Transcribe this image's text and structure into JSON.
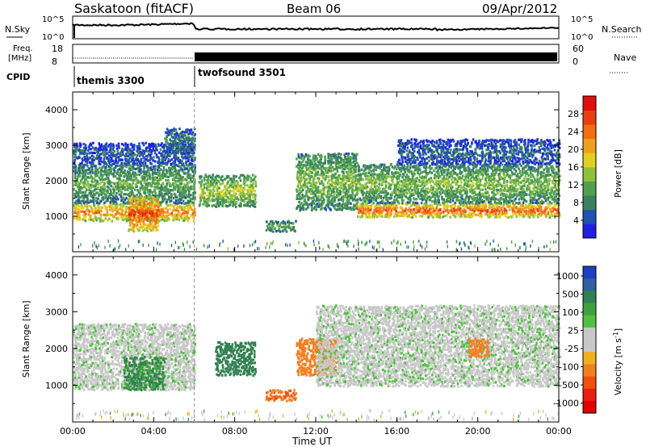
{
  "header": {
    "station": "Saskatoon (fitACF)",
    "beam": "Beam 06",
    "date": "09/Apr/2012"
  },
  "top_panels": {
    "nsky_label": "N.Sky",
    "nsearch_label": "N.Search",
    "noise_ticks": [
      "10^5",
      "10^0"
    ],
    "freq_label_1": "Freq.",
    "freq_label_2": "[MHz]",
    "freq_ticks": [
      "18",
      "8"
    ],
    "nave_label": "Nave",
    "nave_ticks": [
      "60",
      "0"
    ],
    "cpid_label": "CPID",
    "cpid_segments": [
      {
        "name": "themis 3300",
        "start": "00:00",
        "end": "06:00"
      },
      {
        "name": "twofsound 3501",
        "start": "06:00",
        "end": "24:00"
      }
    ]
  },
  "x_axis": {
    "label": "Time UT",
    "ticks": [
      "00:00",
      "04:00",
      "08:00",
      "12:00",
      "16:00",
      "20:00",
      "00:00"
    ]
  },
  "colorbars": {
    "power": {
      "label": "Power [dB]",
      "ticks": [
        "28",
        "24",
        "20",
        "16",
        "12",
        "8",
        "4"
      ],
      "colors": [
        "#2020e0",
        "#2050b0",
        "#3a8060",
        "#50a050",
        "#90c040",
        "#e0d020",
        "#f0a020",
        "#f07010",
        "#e84010",
        "#e01010"
      ]
    },
    "velocity": {
      "label": "Velocity [m s",
      "label_sup": "-1",
      "label_end": "]",
      "ticks": [
        "1000",
        "500",
        "100",
        "25",
        "-25",
        "-100",
        "-500",
        "-1000"
      ],
      "colors": [
        "#2040c0",
        "#3060a0",
        "#308050",
        "#40a040",
        "#50c040",
        "#c8c8c8",
        "#c8c8c8",
        "#f0b020",
        "#f08020",
        "#f05010",
        "#e82010",
        "#e00000"
      ]
    }
  },
  "chart_data": [
    {
      "type": "heatmap",
      "name": "power",
      "ylabel": "Slant Range [km]",
      "yticks": [
        "1000",
        "2000",
        "3000",
        "4000"
      ],
      "ylim": [
        0,
        4500
      ],
      "xlim": [
        0,
        24
      ],
      "colorbar": "Power [dB]",
      "bands": [
        {
          "t0": 0.0,
          "t1": 6.0,
          "r0": 900,
          "r1": 1400,
          "power": 24
        },
        {
          "t0": 0.0,
          "t1": 6.0,
          "r0": 1400,
          "r1": 2500,
          "power": 12
        },
        {
          "t0": 0.0,
          "t1": 6.0,
          "r0": 2500,
          "r1": 3100,
          "power": 6
        },
        {
          "t0": 2.7,
          "t1": 4.2,
          "r0": 600,
          "r1": 1600,
          "power": 28
        },
        {
          "t0": 4.5,
          "t1": 6.0,
          "r0": 2800,
          "r1": 3500,
          "power": 8
        },
        {
          "t0": 6.2,
          "t1": 9.0,
          "r0": 1300,
          "r1": 2200,
          "power": 16
        },
        {
          "t0": 9.5,
          "t1": 11.0,
          "r0": 600,
          "r1": 900,
          "power": 12
        },
        {
          "t0": 11.0,
          "t1": 14.0,
          "r0": 1200,
          "r1": 2800,
          "power": 14
        },
        {
          "t0": 14.0,
          "t1": 24.0,
          "r0": 1000,
          "r1": 1400,
          "power": 26
        },
        {
          "t0": 14.0,
          "t1": 24.0,
          "r0": 1400,
          "r1": 2500,
          "power": 14
        },
        {
          "t0": 16.0,
          "t1": 24.0,
          "r0": 2500,
          "r1": 3200,
          "power": 6
        }
      ]
    },
    {
      "type": "heatmap",
      "name": "velocity",
      "ylabel": "Slant Range [km]",
      "yticks": [
        "1000",
        "2000",
        "3000",
        "4000"
      ],
      "ylim": [
        0,
        4500
      ],
      "xlim": [
        0,
        24
      ],
      "colorbar": "Velocity [m s-1]",
      "bands": [
        {
          "t0": 0.0,
          "t1": 6.0,
          "r0": 900,
          "r1": 2700,
          "velocity": 0
        },
        {
          "t0": 2.5,
          "t1": 4.5,
          "r0": 900,
          "r1": 1800,
          "velocity": 100
        },
        {
          "t0": 7.0,
          "t1": 9.0,
          "r0": 1300,
          "r1": 2200,
          "velocity": 200
        },
        {
          "t0": 9.5,
          "t1": 11.0,
          "r0": 600,
          "r1": 900,
          "velocity": -300
        },
        {
          "t0": 11.0,
          "t1": 13.0,
          "r0": 1300,
          "r1": 2300,
          "velocity": -200
        },
        {
          "t0": 12.0,
          "t1": 24.0,
          "r0": 1000,
          "r1": 3200,
          "velocity": 0
        },
        {
          "t0": 19.5,
          "t1": 20.5,
          "r0": 1800,
          "r1": 2300,
          "velocity": -150
        }
      ]
    }
  ]
}
